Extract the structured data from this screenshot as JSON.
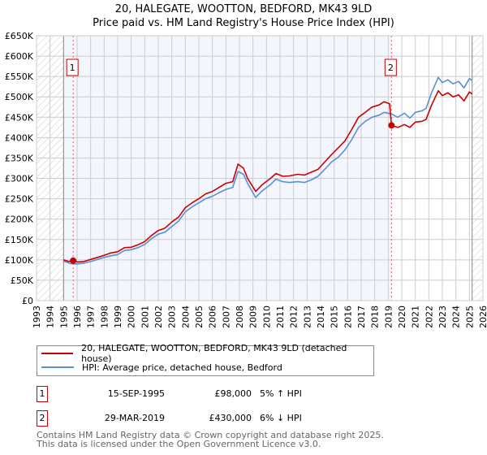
{
  "chart_data": {
    "type": "line",
    "title": "20, HALEGATE, WOOTTON, BEDFORD, MK43 9LD",
    "subtitle": "Price paid vs. HM Land Registry's House Price Index (HPI)",
    "xlim": [
      1993,
      2026
    ],
    "ylim": [
      0,
      650000
    ],
    "x_ticks": [
      "1993",
      "1994",
      "1995",
      "1996",
      "1997",
      "1998",
      "1999",
      "2000",
      "2001",
      "2002",
      "2003",
      "2004",
      "2005",
      "2006",
      "2007",
      "2008",
      "2009",
      "2010",
      "2011",
      "2012",
      "2013",
      "2014",
      "2015",
      "2016",
      "2017",
      "2018",
      "2019",
      "2020",
      "2021",
      "2022",
      "2023",
      "2024",
      "2025",
      "2026"
    ],
    "y_ticks": [
      {
        "v": 0,
        "label": "£0"
      },
      {
        "v": 50000,
        "label": "£50K"
      },
      {
        "v": 100000,
        "label": "£100K"
      },
      {
        "v": 150000,
        "label": "£150K"
      },
      {
        "v": 200000,
        "label": "£200K"
      },
      {
        "v": 250000,
        "label": "£250K"
      },
      {
        "v": 300000,
        "label": "£300K"
      },
      {
        "v": 350000,
        "label": "£350K"
      },
      {
        "v": 400000,
        "label": "£400K"
      },
      {
        "v": 450000,
        "label": "£450K"
      },
      {
        "v": 500000,
        "label": "£500K"
      },
      {
        "v": 550000,
        "label": "£550K"
      },
      {
        "v": 600000,
        "label": "£600K"
      },
      {
        "v": 650000,
        "label": "£650K"
      }
    ],
    "grid": true,
    "hatched_before": 1995.0,
    "hatched_after": 2025.2,
    "series": [
      {
        "name": "20, HALEGATE, WOOTTON, BEDFORD, MK43 9LD (detached house)",
        "color": "#cc0000",
        "points": [
          [
            1995.0,
            100000
          ],
          [
            1995.4,
            96000
          ],
          [
            1995.71,
            98000
          ],
          [
            1996.0,
            95000
          ],
          [
            1996.5,
            96000
          ],
          [
            1997.0,
            101000
          ],
          [
            1997.5,
            106000
          ],
          [
            1998.0,
            111000
          ],
          [
            1998.5,
            117000
          ],
          [
            1999.0,
            120000
          ],
          [
            1999.5,
            130000
          ],
          [
            2000.0,
            131000
          ],
          [
            2000.5,
            137000
          ],
          [
            2001.0,
            145000
          ],
          [
            2001.5,
            160000
          ],
          [
            2002.0,
            172000
          ],
          [
            2002.5,
            178000
          ],
          [
            2003.0,
            193000
          ],
          [
            2003.5,
            205000
          ],
          [
            2004.0,
            228000
          ],
          [
            2004.5,
            240000
          ],
          [
            2005.0,
            250000
          ],
          [
            2005.5,
            262000
          ],
          [
            2006.0,
            268000
          ],
          [
            2006.5,
            278000
          ],
          [
            2007.0,
            288000
          ],
          [
            2007.5,
            292000
          ],
          [
            2007.9,
            335000
          ],
          [
            2008.3,
            325000
          ],
          [
            2008.6,
            300000
          ],
          [
            2009.2,
            268000
          ],
          [
            2009.7,
            285000
          ],
          [
            2010.3,
            300000
          ],
          [
            2010.7,
            312000
          ],
          [
            2011.2,
            305000
          ],
          [
            2011.7,
            306000
          ],
          [
            2012.3,
            310000
          ],
          [
            2012.8,
            308000
          ],
          [
            2013.3,
            315000
          ],
          [
            2013.8,
            322000
          ],
          [
            2014.3,
            340000
          ],
          [
            2014.8,
            358000
          ],
          [
            2015.3,
            375000
          ],
          [
            2015.8,
            392000
          ],
          [
            2016.3,
            420000
          ],
          [
            2016.8,
            450000
          ],
          [
            2017.3,
            462000
          ],
          [
            2017.8,
            475000
          ],
          [
            2018.3,
            480000
          ],
          [
            2018.7,
            488000
          ],
          [
            2019.1,
            483000
          ],
          [
            2019.24,
            430000
          ],
          [
            2019.7,
            425000
          ],
          [
            2020.2,
            432000
          ],
          [
            2020.6,
            425000
          ],
          [
            2021.0,
            438000
          ],
          [
            2021.5,
            440000
          ],
          [
            2021.8,
            445000
          ],
          [
            2022.2,
            480000
          ],
          [
            2022.7,
            515000
          ],
          [
            2023.0,
            503000
          ],
          [
            2023.4,
            510000
          ],
          [
            2023.8,
            500000
          ],
          [
            2024.2,
            505000
          ],
          [
            2024.6,
            490000
          ],
          [
            2025.0,
            512000
          ],
          [
            2025.2,
            507000
          ]
        ]
      },
      {
        "name": "HPI: Average price, detached house, Bedford",
        "color": "#5b8fd6",
        "points": [
          [
            1995.0,
            97000
          ],
          [
            1995.5,
            91000
          ],
          [
            1996.0,
            90000
          ],
          [
            1996.5,
            92000
          ],
          [
            1997.0,
            96000
          ],
          [
            1997.5,
            101000
          ],
          [
            1998.0,
            106000
          ],
          [
            1998.5,
            110000
          ],
          [
            1999.0,
            113000
          ],
          [
            1999.5,
            123000
          ],
          [
            2000.0,
            125000
          ],
          [
            2000.5,
            130000
          ],
          [
            2001.0,
            138000
          ],
          [
            2001.5,
            152000
          ],
          [
            2002.0,
            163000
          ],
          [
            2002.5,
            168000
          ],
          [
            2003.0,
            182000
          ],
          [
            2003.5,
            195000
          ],
          [
            2004.0,
            218000
          ],
          [
            2004.5,
            230000
          ],
          [
            2005.0,
            240000
          ],
          [
            2005.5,
            250000
          ],
          [
            2006.0,
            256000
          ],
          [
            2006.5,
            265000
          ],
          [
            2007.0,
            273000
          ],
          [
            2007.5,
            278000
          ],
          [
            2007.9,
            317000
          ],
          [
            2008.3,
            310000
          ],
          [
            2008.6,
            288000
          ],
          [
            2009.2,
            253000
          ],
          [
            2009.7,
            270000
          ],
          [
            2010.3,
            285000
          ],
          [
            2010.7,
            298000
          ],
          [
            2011.2,
            292000
          ],
          [
            2011.7,
            290000
          ],
          [
            2012.3,
            292000
          ],
          [
            2012.8,
            290000
          ],
          [
            2013.3,
            296000
          ],
          [
            2013.8,
            305000
          ],
          [
            2014.3,
            322000
          ],
          [
            2014.8,
            340000
          ],
          [
            2015.3,
            352000
          ],
          [
            2015.8,
            370000
          ],
          [
            2016.3,
            395000
          ],
          [
            2016.8,
            425000
          ],
          [
            2017.3,
            440000
          ],
          [
            2017.8,
            450000
          ],
          [
            2018.3,
            455000
          ],
          [
            2018.7,
            462000
          ],
          [
            2019.24,
            458000
          ],
          [
            2019.7,
            450000
          ],
          [
            2020.2,
            460000
          ],
          [
            2020.6,
            448000
          ],
          [
            2021.0,
            462000
          ],
          [
            2021.5,
            466000
          ],
          [
            2021.8,
            472000
          ],
          [
            2022.2,
            510000
          ],
          [
            2022.7,
            548000
          ],
          [
            2023.0,
            535000
          ],
          [
            2023.4,
            542000
          ],
          [
            2023.8,
            532000
          ],
          [
            2024.2,
            538000
          ],
          [
            2024.6,
            522000
          ],
          [
            2025.0,
            545000
          ],
          [
            2025.2,
            540000
          ]
        ]
      }
    ],
    "sales": [
      {
        "id": "1",
        "x": 1995.71,
        "y": 98000
      },
      {
        "id": "2",
        "x": 2019.24,
        "y": 430000
      }
    ]
  },
  "title_line1": "20, HALEGATE, WOOTTON, BEDFORD, MK43 9LD",
  "title_line2": "Price paid vs. HM Land Registry's House Price Index (HPI)",
  "legend": {
    "property": "20, HALEGATE, WOOTTON, BEDFORD, MK43 9LD (detached house)",
    "hpi": "HPI: Average price, detached house, Bedford"
  },
  "transactions": [
    {
      "id": "1",
      "date": "15-SEP-1995",
      "price": "£98,000",
      "hpi": "5% ↑ HPI"
    },
    {
      "id": "2",
      "date": "29-MAR-2019",
      "price": "£430,000",
      "hpi": "6% ↓ HPI"
    }
  ],
  "footer_line1": "Contains HM Land Registry data © Crown copyright and database right 2025.",
  "footer_line2": "This data is licensed under the Open Government Licence v3.0."
}
